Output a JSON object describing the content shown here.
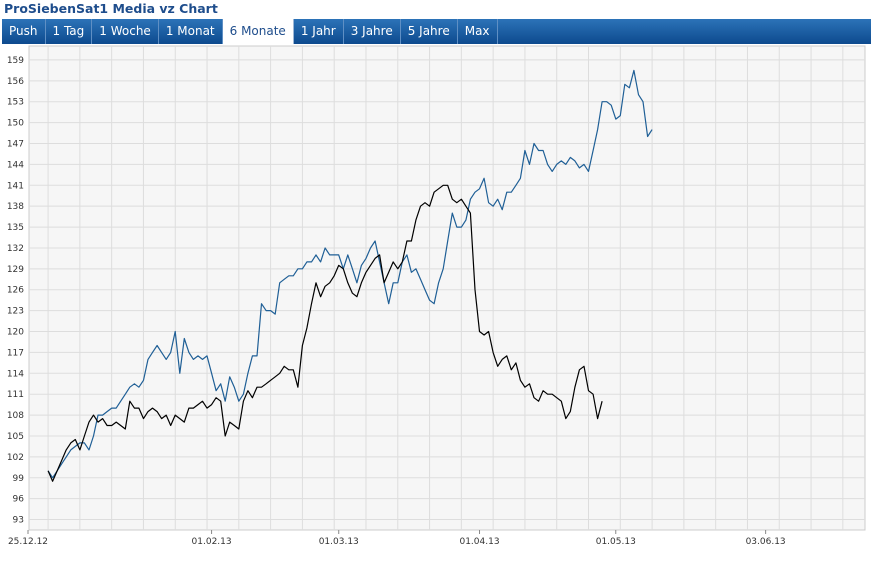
{
  "title": "ProSiebenSat1 Media vz Chart",
  "tabs": [
    "Push",
    "1 Tag",
    "1 Woche",
    "1 Monat",
    "6 Monate",
    "1 Jahr",
    "3 Jahre",
    "5 Jahre",
    "Max"
  ],
  "active_tab": "6 Monate",
  "colors": {
    "series_blue": "#1f5f96",
    "series_black": "#000000",
    "tabbar": "#11508f",
    "grid": "#dddddd"
  },
  "chart_data": {
    "type": "line",
    "ylim": [
      91.5,
      161
    ],
    "y_ticks": [
      93,
      96,
      99,
      102,
      105,
      108,
      111,
      114,
      117,
      120,
      123,
      126,
      129,
      132,
      135,
      138,
      141,
      144,
      147,
      150,
      153,
      156,
      159
    ],
    "x_domain_days": [
      0,
      181
    ],
    "x_ticks": [
      {
        "label": "25.12.12",
        "day": 0
      },
      {
        "label": "01.02.13",
        "day": 38
      },
      {
        "label": "01.03.13",
        "day": 66
      },
      {
        "label": "01.04.13",
        "day": 97
      },
      {
        "label": "01.05.13",
        "day": 127
      },
      {
        "label": "03.06.13",
        "day": 160
      }
    ],
    "grid": true,
    "series": [
      {
        "color": "#1f5f96",
        "points": [
          [
            2,
            100
          ],
          [
            3,
            99
          ],
          [
            4,
            100
          ],
          [
            5,
            101
          ],
          [
            6,
            102
          ],
          [
            7,
            103
          ],
          [
            8,
            103.5
          ],
          [
            9,
            104
          ],
          [
            10,
            104
          ],
          [
            11,
            103
          ],
          [
            12,
            105
          ],
          [
            13,
            108
          ],
          [
            14,
            108
          ],
          [
            15,
            108.5
          ],
          [
            16,
            109
          ],
          [
            17,
            109
          ],
          [
            18,
            110
          ],
          [
            19,
            111
          ],
          [
            20,
            112
          ],
          [
            21,
            112.5
          ],
          [
            22,
            112
          ],
          [
            23,
            113
          ],
          [
            24,
            116
          ],
          [
            25,
            117
          ],
          [
            26,
            118
          ],
          [
            27,
            117
          ],
          [
            28,
            116
          ],
          [
            29,
            117
          ],
          [
            30,
            120
          ],
          [
            31,
            114
          ],
          [
            32,
            119
          ],
          [
            33,
            117
          ],
          [
            34,
            116
          ],
          [
            35,
            116.5
          ],
          [
            36,
            116
          ],
          [
            37,
            116.5
          ],
          [
            38,
            114
          ],
          [
            39,
            111.5
          ],
          [
            40,
            112.5
          ],
          [
            41,
            110
          ],
          [
            42,
            113.5
          ],
          [
            43,
            112
          ],
          [
            44,
            110
          ],
          [
            45,
            111
          ],
          [
            46,
            114
          ],
          [
            47,
            116.5
          ],
          [
            48,
            116.5
          ],
          [
            49,
            124
          ],
          [
            50,
            123
          ],
          [
            51,
            123
          ],
          [
            52,
            122.5
          ],
          [
            53,
            127
          ],
          [
            54,
            127.5
          ],
          [
            55,
            128
          ],
          [
            56,
            128
          ],
          [
            57,
            129
          ],
          [
            58,
            129
          ],
          [
            59,
            130
          ],
          [
            60,
            130
          ],
          [
            61,
            131
          ],
          [
            62,
            130
          ],
          [
            63,
            132
          ],
          [
            64,
            131
          ],
          [
            65,
            131
          ],
          [
            66,
            131
          ],
          [
            67,
            129
          ],
          [
            68,
            131
          ],
          [
            69,
            129
          ],
          [
            70,
            127
          ],
          [
            71,
            129.5
          ],
          [
            72,
            130.5
          ],
          [
            73,
            132
          ],
          [
            74,
            133
          ],
          [
            75,
            130
          ],
          [
            76,
            127
          ],
          [
            77,
            124
          ],
          [
            78,
            127
          ],
          [
            79,
            127
          ],
          [
            80,
            130
          ],
          [
            81,
            131
          ],
          [
            82,
            128.5
          ],
          [
            83,
            129
          ],
          [
            84,
            127.5
          ],
          [
            85,
            126
          ],
          [
            86,
            124.5
          ],
          [
            87,
            124
          ],
          [
            88,
            127
          ],
          [
            89,
            129
          ],
          [
            90,
            133
          ],
          [
            91,
            137
          ],
          [
            92,
            135
          ],
          [
            93,
            135
          ],
          [
            94,
            136
          ],
          [
            95,
            139
          ],
          [
            96,
            140
          ],
          [
            97,
            140.5
          ],
          [
            98,
            142
          ],
          [
            99,
            138.5
          ],
          [
            100,
            138
          ],
          [
            101,
            139
          ],
          [
            102,
            137.5
          ],
          [
            103,
            140
          ],
          [
            104,
            140
          ],
          [
            105,
            141
          ],
          [
            106,
            142
          ],
          [
            107,
            146
          ],
          [
            108,
            144
          ],
          [
            109,
            147
          ],
          [
            110,
            146
          ],
          [
            111,
            146
          ],
          [
            112,
            144
          ],
          [
            113,
            143
          ],
          [
            114,
            144
          ],
          [
            115,
            144.5
          ],
          [
            116,
            144
          ],
          [
            117,
            145
          ],
          [
            118,
            144.5
          ],
          [
            119,
            143.5
          ],
          [
            120,
            144
          ],
          [
            121,
            143
          ],
          [
            122,
            146
          ],
          [
            123,
            149
          ],
          [
            124,
            153
          ],
          [
            125,
            153
          ],
          [
            126,
            152.5
          ],
          [
            127,
            150.5
          ],
          [
            128,
            151
          ],
          [
            129,
            155.5
          ],
          [
            130,
            155
          ],
          [
            131,
            157.5
          ],
          [
            132,
            154
          ],
          [
            133,
            153
          ],
          [
            134,
            148
          ],
          [
            135,
            149
          ]
        ]
      },
      {
        "color": "#000000",
        "points": [
          [
            2,
            100
          ],
          [
            3,
            98.5
          ],
          [
            4,
            100
          ],
          [
            5,
            101.5
          ],
          [
            6,
            103
          ],
          [
            7,
            104
          ],
          [
            8,
            104.5
          ],
          [
            9,
            103
          ],
          [
            10,
            105
          ],
          [
            11,
            107
          ],
          [
            12,
            108
          ],
          [
            13,
            107
          ],
          [
            14,
            107.5
          ],
          [
            15,
            106.5
          ],
          [
            16,
            106.5
          ],
          [
            17,
            107
          ],
          [
            18,
            106.5
          ],
          [
            19,
            106
          ],
          [
            20,
            110
          ],
          [
            21,
            109
          ],
          [
            22,
            109
          ],
          [
            23,
            107.5
          ],
          [
            24,
            108.5
          ],
          [
            25,
            109
          ],
          [
            26,
            108.5
          ],
          [
            27,
            107.5
          ],
          [
            28,
            108
          ],
          [
            29,
            106.5
          ],
          [
            30,
            108
          ],
          [
            31,
            107.5
          ],
          [
            32,
            107
          ],
          [
            33,
            109
          ],
          [
            34,
            109
          ],
          [
            35,
            109.5
          ],
          [
            36,
            110
          ],
          [
            37,
            109
          ],
          [
            38,
            109.5
          ],
          [
            39,
            110.5
          ],
          [
            40,
            110
          ],
          [
            41,
            105
          ],
          [
            42,
            107
          ],
          [
            43,
            106.5
          ],
          [
            44,
            106
          ],
          [
            45,
            110
          ],
          [
            46,
            111.5
          ],
          [
            47,
            110.5
          ],
          [
            48,
            112
          ],
          [
            49,
            112
          ],
          [
            50,
            112.5
          ],
          [
            51,
            113
          ],
          [
            52,
            113.5
          ],
          [
            53,
            114
          ],
          [
            54,
            115
          ],
          [
            55,
            114.5
          ],
          [
            56,
            114.5
          ],
          [
            57,
            112
          ],
          [
            58,
            118
          ],
          [
            59,
            120.5
          ],
          [
            60,
            124
          ],
          [
            61,
            127
          ],
          [
            62,
            125
          ],
          [
            63,
            126.5
          ],
          [
            64,
            127
          ],
          [
            65,
            128
          ],
          [
            66,
            129.5
          ],
          [
            67,
            129
          ],
          [
            68,
            127
          ],
          [
            69,
            125.5
          ],
          [
            70,
            125
          ],
          [
            71,
            127
          ],
          [
            72,
            128.5
          ],
          [
            73,
            129.5
          ],
          [
            74,
            130.5
          ],
          [
            75,
            131
          ],
          [
            76,
            127
          ],
          [
            77,
            128.5
          ],
          [
            78,
            130
          ],
          [
            79,
            129
          ],
          [
            80,
            130
          ],
          [
            81,
            133
          ],
          [
            82,
            133
          ],
          [
            83,
            136
          ],
          [
            84,
            138
          ],
          [
            85,
            138.5
          ],
          [
            86,
            138
          ],
          [
            87,
            140
          ],
          [
            88,
            140.5
          ],
          [
            89,
            141
          ],
          [
            90,
            141
          ],
          [
            91,
            139
          ],
          [
            92,
            138.5
          ],
          [
            93,
            139
          ],
          [
            94,
            138
          ],
          [
            95,
            137
          ],
          [
            96,
            126
          ],
          [
            97,
            120
          ],
          [
            98,
            119.5
          ],
          [
            99,
            120
          ],
          [
            100,
            117
          ],
          [
            101,
            115
          ],
          [
            102,
            116
          ],
          [
            103,
            116.5
          ],
          [
            104,
            114.5
          ],
          [
            105,
            115.5
          ],
          [
            106,
            113
          ],
          [
            107,
            112
          ],
          [
            108,
            112.5
          ],
          [
            109,
            110.5
          ],
          [
            110,
            110
          ],
          [
            111,
            111.5
          ],
          [
            112,
            111
          ],
          [
            113,
            111
          ],
          [
            114,
            110.5
          ],
          [
            115,
            110
          ],
          [
            116,
            107.5
          ],
          [
            117,
            108.5
          ],
          [
            118,
            112
          ],
          [
            119,
            114.5
          ],
          [
            120,
            115
          ],
          [
            121,
            111.5
          ],
          [
            122,
            111
          ],
          [
            123,
            107.5
          ],
          [
            124,
            110
          ]
        ]
      }
    ]
  }
}
